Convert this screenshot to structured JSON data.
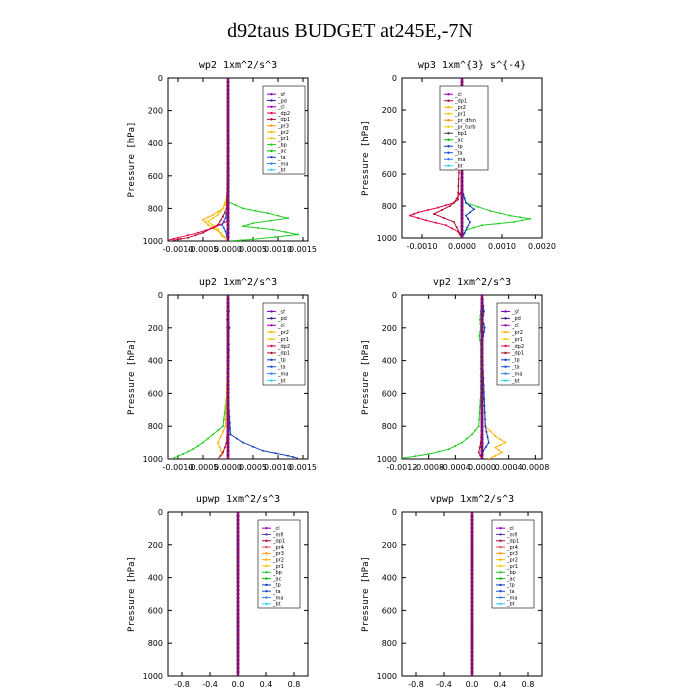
{
  "page_title": "d92taus  BUDGET at245E,-7N",
  "colors": {
    "sf": "#7a00c8",
    "pd": "#3c14a0",
    "cl": "#a000b4",
    "dp2": "#e8004a",
    "dp1": "#b01030",
    "pr4": "#e05050",
    "pr3": "#ff9900",
    "pr2": "#ffb400",
    "pr1": "#f0c800",
    "pr_dfsn": "#ff9900",
    "pr_turb": "#e8d000",
    "bp": "#22cc22",
    "ac": "#00bb00",
    "tp": "#1040c0",
    "ta": "#1a50d8",
    "ma": "#3080ff",
    "bt": "#30d0f0",
    "mfl": "#5a3cb4"
  },
  "chart_data": [
    {
      "type": "line",
      "title": "wp2  1xm^2/s^3",
      "ylabel": "Pressure [hPa]",
      "xlabel": "",
      "xlim": [
        -0.0012,
        0.0016
      ],
      "ylim": [
        1000,
        0
      ],
      "xticks": [
        -0.001,
        -0.0005,
        0.0,
        0.0005,
        0.001,
        0.0015
      ],
      "xtick_labels": [
        "-0.0010",
        "-0.0005",
        "0.0000",
        "0.0005",
        "0.0010",
        "0.0015"
      ],
      "yticks": [
        0,
        200,
        400,
        600,
        800,
        1000
      ],
      "legend": [
        "_sf",
        "_pd",
        "_cl",
        "_dp2",
        "_dp1",
        "_pr3",
        "_pr2",
        "_pr1",
        "_bp",
        "_ac",
        "_ta",
        "_ma",
        "_bt"
      ],
      "series": [
        {
          "name": "_bp",
          "color": "#22cc22",
          "x": [
            0,
            1e-05,
            2e-05,
            1e-05,
            0.0003,
            0.0008,
            0.0012,
            0.0005,
            0.0003,
            0.0009,
            0.0014,
            0.0005,
            0
          ],
          "y": [
            0,
            200,
            600,
            760,
            800,
            830,
            860,
            890,
            910,
            930,
            960,
            990,
            1000
          ]
        },
        {
          "name": "_pr2",
          "color": "#ffb400",
          "x": [
            0,
            0,
            -2e-05,
            -0.0001,
            -0.0003,
            -0.0005,
            -0.0004,
            -0.00015,
            0
          ],
          "y": [
            0,
            600,
            760,
            800,
            840,
            870,
            900,
            950,
            1000
          ]
        },
        {
          "name": "_pr1",
          "color": "#f0c800",
          "x": [
            0,
            0,
            -0.0001,
            -0.0002,
            -0.0004,
            -0.0002,
            -0.0001
          ],
          "y": [
            0,
            700,
            800,
            840,
            880,
            930,
            980
          ]
        },
        {
          "name": "_dp1",
          "color": "#b01030",
          "x": [
            0,
            -1e-05,
            -3e-05,
            -0.0001,
            -0.0002,
            -0.0005,
            -0.0008,
            -0.0011
          ],
          "y": [
            0,
            600,
            800,
            850,
            900,
            950,
            980,
            995
          ]
        },
        {
          "name": "_dp2",
          "color": "#e8004a",
          "x": [
            0,
            -2e-05,
            -0.0003,
            -0.0006,
            -0.001,
            -0.0012
          ],
          "y": [
            0,
            880,
            920,
            950,
            980,
            995
          ]
        },
        {
          "name": "_cl",
          "color": "#a000b4",
          "x": [
            0,
            1e-05,
            -1e-05,
            1e-05,
            -1e-05,
            1e-05,
            0
          ],
          "y": [
            0,
            100,
            150,
            200,
            250,
            300,
            1000
          ]
        },
        {
          "name": "_ta",
          "color": "#1a50d8",
          "x": [
            0,
            0,
            -5e-05,
            -0.00012,
            -5e-05,
            0
          ],
          "y": [
            0,
            780,
            860,
            900,
            940,
            1000
          ]
        },
        {
          "name": "_sf",
          "color": "#7a00c8",
          "x": [
            0,
            0,
            0
          ],
          "y": [
            0,
            500,
            1000
          ]
        }
      ]
    },
    {
      "type": "line",
      "title": "wp3  1xm^{3} s^{-4}",
      "ylabel": "Pressure [hPa]",
      "xlabel": "",
      "xlim": [
        -0.0015,
        0.002
      ],
      "ylim": [
        1000,
        0
      ],
      "xticks": [
        -0.001,
        0.0,
        0.001,
        0.002
      ],
      "xtick_labels": [
        "-0.0010",
        "0.0000",
        "0.0010",
        "0.0020"
      ],
      "yticks": [
        0,
        200,
        400,
        600,
        800,
        1000
      ],
      "legend": [
        "_cl",
        "_dp1",
        "_pr2",
        "_pr1",
        "_pr_dfsn",
        "_pr_turb",
        "_bp1",
        "_ac",
        "_tp",
        "_ta",
        "_ma",
        "_bt"
      ],
      "series": [
        {
          "name": "_bp1",
          "color": "#22cc22",
          "x": [
            0,
            0,
            0.0001,
            0.0007,
            0.0012,
            0.0017,
            0.0013,
            0.0005,
            0.0001,
            0
          ],
          "y": [
            0,
            700,
            780,
            830,
            860,
            880,
            900,
            920,
            950,
            1000
          ]
        },
        {
          "name": "_dp1",
          "color": "#e8004a",
          "x": [
            0,
            0,
            -0.0002,
            -0.0006,
            -0.0011,
            -0.0013,
            -0.0009,
            -0.0004,
            -0.0001,
            0
          ],
          "y": [
            0,
            700,
            780,
            810,
            840,
            860,
            890,
            920,
            960,
            1000
          ]
        },
        {
          "name": "_pr2",
          "color": "#b01030",
          "x": [
            0,
            -0.0001,
            -0.0003,
            -0.0007,
            -0.0002,
            0
          ],
          "y": [
            0,
            760,
            800,
            850,
            900,
            1000
          ]
        },
        {
          "name": "_tp",
          "color": "#1040c0",
          "x": [
            0,
            0,
            0.0001,
            0.0003,
            0.0001,
            0.0002,
            0
          ],
          "y": [
            0,
            700,
            780,
            820,
            860,
            900,
            1000
          ]
        },
        {
          "name": "_cl",
          "color": "#7a00c8",
          "x": [
            0,
            0,
            0
          ],
          "y": [
            0,
            500,
            1000
          ]
        }
      ]
    },
    {
      "type": "line",
      "title": "up2  1xm^2/s^3",
      "ylabel": "Pressure [hPa]",
      "xlabel": "",
      "xlim": [
        -0.0012,
        0.0016
      ],
      "ylim": [
        1000,
        0
      ],
      "xticks": [
        -0.001,
        -0.0005,
        0.0,
        0.0005,
        0.001,
        0.0015
      ],
      "xtick_labels": [
        "-0.0010",
        "-0.0005",
        "0.0000",
        "0.0005",
        "0.0010",
        "0.0015"
      ],
      "yticks": [
        0,
        200,
        400,
        600,
        800,
        1000
      ],
      "legend": [
        "_sf",
        "_pd",
        "_cl",
        "_pr2",
        "_pr1",
        "_dp2",
        "_dp1",
        "_tp",
        "_ta",
        "_ma",
        "_bt"
      ],
      "series": [
        {
          "name": "_dp2",
          "color": "#22cc22",
          "x": [
            0,
            -2e-05,
            -0.0001,
            -0.0003,
            -0.0005,
            -0.0007,
            -0.0009,
            -0.0011
          ],
          "y": [
            0,
            600,
            800,
            850,
            900,
            940,
            970,
            995
          ]
        },
        {
          "name": "_tp",
          "color": "#1040c0",
          "x": [
            0,
            2e-05,
            -2e-05,
            3e-05,
            -1e-05,
            2e-05,
            0,
            5e-05,
            0.0003,
            0.0007,
            0.0012,
            0.0014
          ],
          "y": [
            0,
            100,
            150,
            200,
            250,
            300,
            600,
            850,
            900,
            950,
            980,
            995
          ]
        },
        {
          "name": "_pr2",
          "color": "#ffb400",
          "x": [
            0,
            -2e-05,
            1e-05,
            -2e-05,
            2e-05,
            0,
            -5e-05,
            -0.0002,
            -0.0001
          ],
          "y": [
            0,
            100,
            150,
            200,
            250,
            300,
            800,
            900,
            980
          ]
        },
        {
          "name": "_dp1",
          "color": "#b01030",
          "x": [
            0,
            0,
            -3e-05,
            -0.0001,
            -0.0002
          ],
          "y": [
            0,
            800,
            900,
            960,
            1000
          ]
        },
        {
          "name": "_sf",
          "color": "#7a00c8",
          "x": [
            0,
            0,
            0
          ],
          "y": [
            0,
            500,
            1000
          ]
        }
      ]
    },
    {
      "type": "line",
      "title": "vp2  1xm^2/s^3",
      "ylabel": "Pressure [hPa]",
      "xlabel": "",
      "xlim": [
        -0.0012,
        0.0009
      ],
      "ylim": [
        1000,
        0
      ],
      "xticks": [
        -0.0012,
        -0.0008,
        -0.0004,
        0.0,
        0.0004,
        0.0008
      ],
      "xtick_labels": [
        "-0.0012",
        "-0.0008",
        "-0.0004",
        "0.0000",
        "0.0004",
        "0.0008"
      ],
      "yticks": [
        0,
        200,
        400,
        600,
        800,
        1000
      ],
      "legend": [
        "_sf",
        "_pd",
        "_cl",
        "_pr2",
        "_pr1",
        "_dp2",
        "_dp1",
        "_tp",
        "_ta",
        "_ma",
        "_bt"
      ],
      "series": [
        {
          "name": "_dp2",
          "color": "#22cc22",
          "x": [
            0,
            -2e-05,
            -3e-05,
            -2e-05,
            -4e-05,
            -2e-05,
            -2e-05,
            -5e-05,
            -0.00015,
            -0.0003,
            -0.0005,
            -0.0008,
            -0.0012
          ],
          "y": [
            0,
            100,
            150,
            200,
            250,
            300,
            600,
            800,
            850,
            900,
            940,
            970,
            995
          ]
        },
        {
          "name": "_pr2",
          "color": "#ffb400",
          "x": [
            0,
            2e-05,
            -2e-05,
            2e-05,
            0,
            5e-05,
            0.0002,
            0.00035,
            0.0002,
            0.0003,
            0.0001
          ],
          "y": [
            0,
            120,
            170,
            220,
            300,
            800,
            860,
            900,
            930,
            960,
            1000
          ]
        },
        {
          "name": "_tp",
          "color": "#1040c0",
          "x": [
            0,
            3e-05,
            1e-05,
            4e-05,
            2e-05,
            0,
            5e-05,
            0.0001,
            2e-05,
            0
          ],
          "y": [
            0,
            100,
            150,
            200,
            250,
            300,
            800,
            900,
            950,
            1000
          ]
        },
        {
          "name": "_dp1",
          "color": "#b01030",
          "x": [
            0,
            0,
            -2e-05,
            -5e-05,
            0
          ],
          "y": [
            0,
            800,
            900,
            960,
            1000
          ]
        },
        {
          "name": "_sf",
          "color": "#7a00c8",
          "x": [
            0,
            0,
            0
          ],
          "y": [
            0,
            500,
            1000
          ]
        }
      ]
    },
    {
      "type": "line",
      "title": "upwp  1xm^2/s^3",
      "ylabel": "Pressure [hPa]",
      "xlabel": "",
      "xlim": [
        -1.0,
        1.0
      ],
      "ylim": [
        1000,
        0
      ],
      "xticks": [
        -0.8,
        -0.4,
        0.0,
        0.4,
        0.8
      ],
      "xtick_labels": [
        "-0.8",
        "-0.4",
        "0.0",
        "0.4",
        "0.8"
      ],
      "yticks": [
        0,
        200,
        400,
        600,
        800,
        1000
      ],
      "legend": [
        "_cl",
        "_mfl",
        "_dp1",
        "_pr4",
        "_pr3",
        "_pr2",
        "_pr1",
        "_bp",
        "_ac",
        "_tp",
        "_ta",
        "_ma",
        "_bt"
      ],
      "series": [
        {
          "name": "_cl",
          "color": "#7a00c8",
          "x": [
            0,
            0,
            0
          ],
          "y": [
            0,
            500,
            1000
          ]
        }
      ]
    },
    {
      "type": "line",
      "title": "vpwp  1xm^2/s^3",
      "ylabel": "Pressure [hPa]",
      "xlabel": "",
      "xlim": [
        -1.0,
        1.0
      ],
      "ylim": [
        1000,
        0
      ],
      "xticks": [
        -0.8,
        -0.4,
        0.0,
        0.4,
        0.8
      ],
      "xtick_labels": [
        "-0.8",
        "-0.4",
        "0.0",
        "0.4",
        "0.8"
      ],
      "yticks": [
        0,
        200,
        400,
        600,
        800,
        1000
      ],
      "legend": [
        "_cl",
        "_mfl",
        "_dp1",
        "_pr4",
        "_pr3",
        "_pr2",
        "_pr1",
        "_bp",
        "_ac",
        "_tp",
        "_ta",
        "_ma",
        "_bt"
      ],
      "series": [
        {
          "name": "_cl",
          "color": "#7a00c8",
          "x": [
            0,
            0,
            0
          ],
          "y": [
            0,
            500,
            1000
          ]
        }
      ]
    }
  ]
}
